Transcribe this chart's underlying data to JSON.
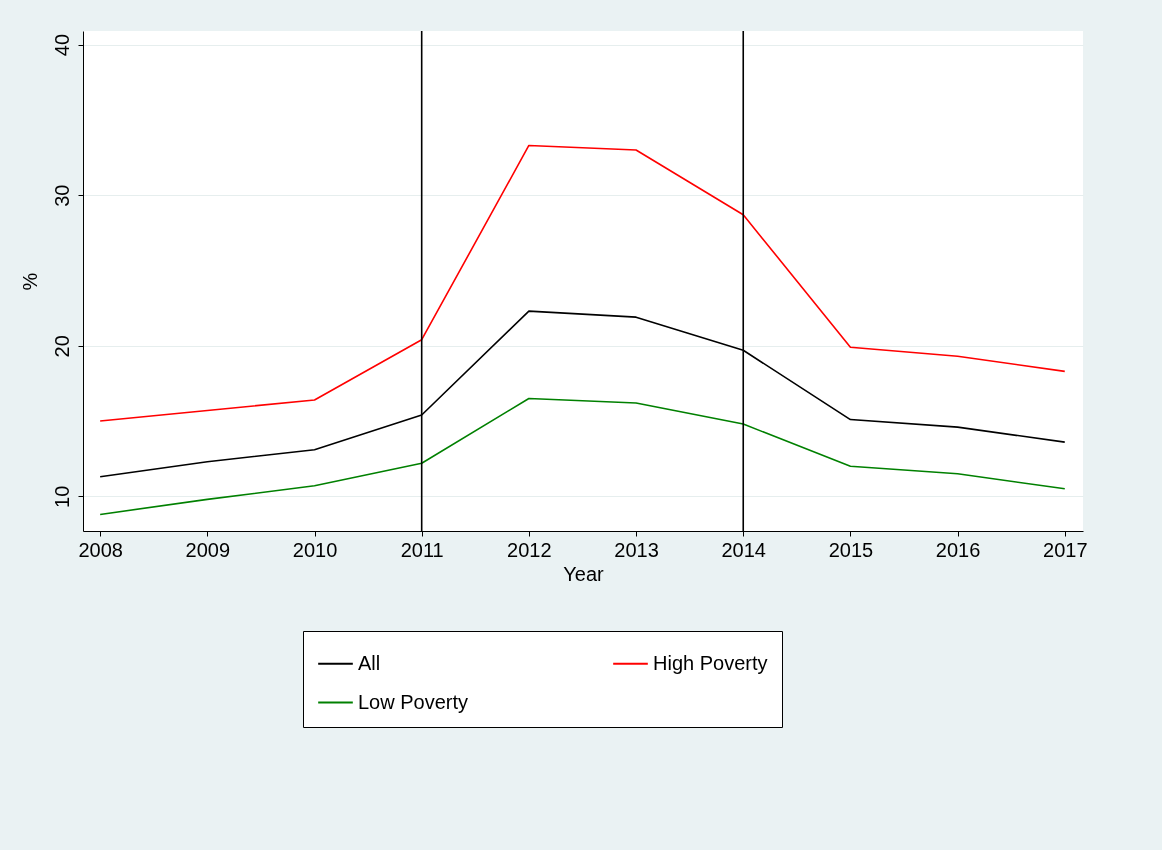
{
  "chart_data": {
    "type": "line",
    "xlabel": "Year",
    "ylabel": "%",
    "x": [
      2008,
      2009,
      2010,
      2011,
      2012,
      2013,
      2014,
      2015,
      2016,
      2017
    ],
    "series": [
      {
        "name": "All",
        "color": "#000000",
        "values": [
          11.3,
          12.3,
          13.1,
          15.4,
          22.3,
          21.9,
          19.7,
          15.1,
          14.6,
          13.6
        ]
      },
      {
        "name": "High Poverty",
        "color": "#ff0000",
        "values": [
          15.0,
          15.7,
          16.4,
          20.4,
          33.3,
          33.0,
          28.7,
          19.9,
          19.3,
          18.3
        ]
      },
      {
        "name": "Low Poverty",
        "color": "#008000",
        "values": [
          8.8,
          9.8,
          10.7,
          12.2,
          16.5,
          16.2,
          14.8,
          12.0,
          11.5,
          10.5
        ]
      }
    ],
    "xlim": [
      2007.84,
      2017.17
    ],
    "xticks": [
      2008,
      2009,
      2010,
      2011,
      2012,
      2013,
      2014,
      2015,
      2016,
      2017
    ],
    "ylim": [
      7.7,
      40.9
    ],
    "yticks": [
      10,
      20,
      30,
      40
    ],
    "ref_lines": [
      {
        "axis": "x",
        "value": 2011,
        "color": "#000000"
      },
      {
        "axis": "x",
        "value": 2014,
        "color": "#000000"
      }
    ],
    "grid": "y",
    "legend": "bottom",
    "marker": "none",
    "line_style": "solid"
  }
}
